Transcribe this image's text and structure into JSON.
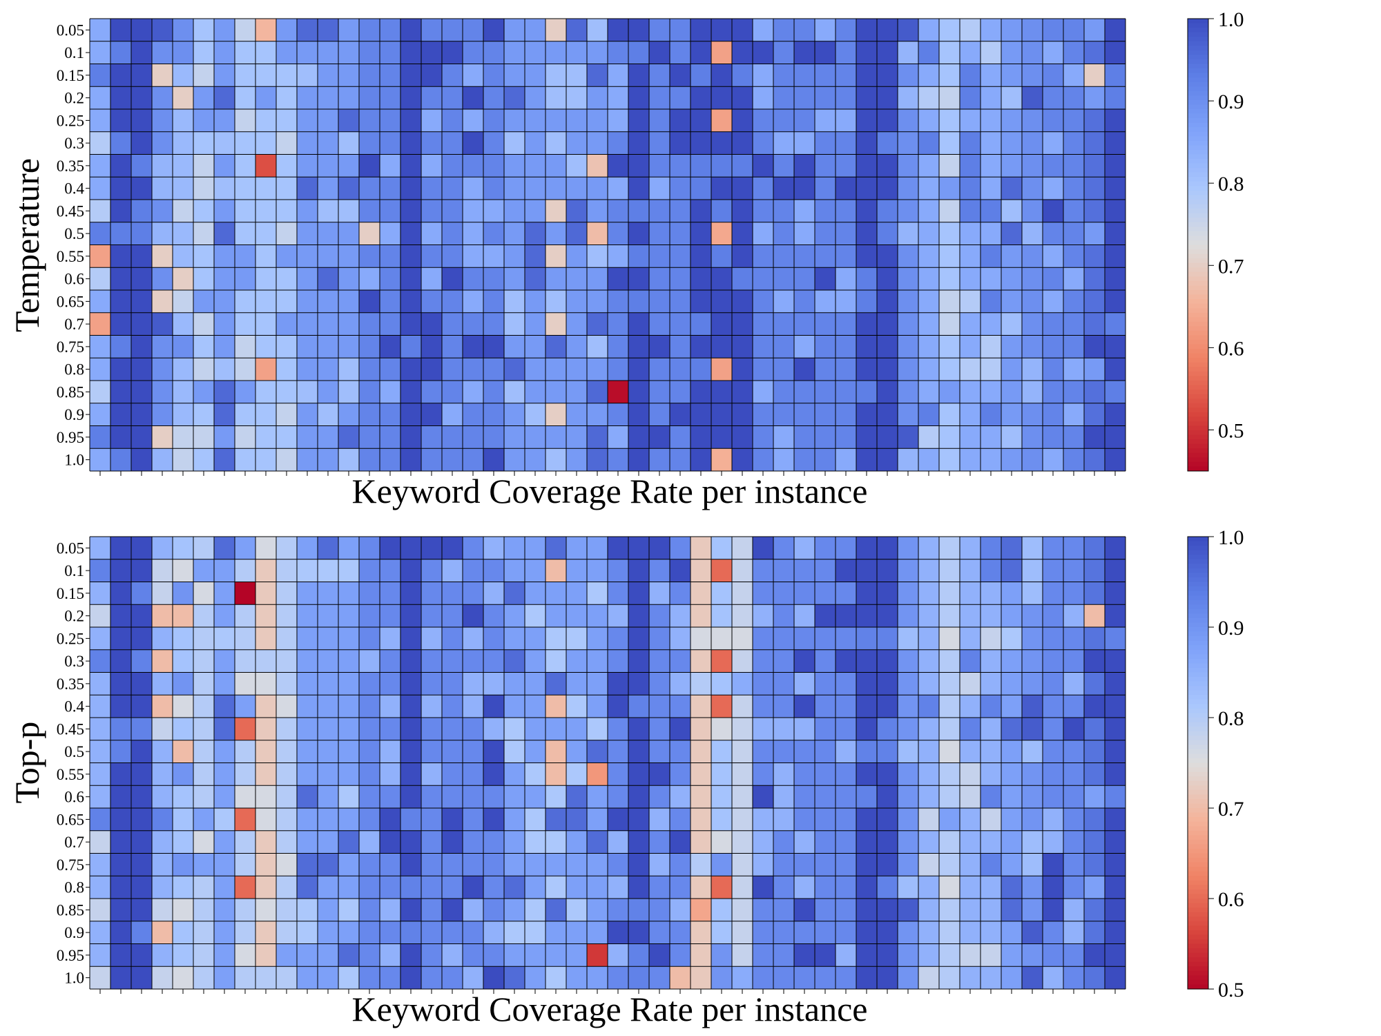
{
  "chart_data": [
    {
      "type": "heatmap",
      "title": "",
      "xlabel": "Keyword Coverage Rate per instance",
      "ylabel": "Temperature",
      "y_categories": [
        "0.05",
        "0.1",
        "0.15",
        "0.2",
        "0.25",
        "0.3",
        "0.35",
        "0.4",
        "0.45",
        "0.5",
        "0.55",
        "0.6",
        "0.65",
        "0.7",
        "0.75",
        "0.8",
        "0.85",
        "0.9",
        "0.95",
        "1.0"
      ],
      "n_columns": 50,
      "x_tick_labels": "none",
      "colormap": "coolwarm",
      "colorbar": {
        "range": [
          0.45,
          1.0
        ],
        "ticks": [
          "0.5",
          "0.6",
          "0.7",
          "0.8",
          "0.9",
          "1.0"
        ],
        "tick_values": [
          0.5,
          0.6,
          0.7,
          0.8,
          0.9,
          1.0
        ]
      },
      "column_profile": [
        0.85,
        1,
        1,
        0.9,
        0.82,
        0.8,
        0.88,
        0.8,
        0.8,
        0.8,
        0.88,
        0.88,
        0.88,
        0.92,
        0.92,
        1,
        0.92,
        0.92,
        0.92,
        0.92,
        0.88,
        0.88,
        0.88,
        0.88,
        0.88,
        0.92,
        1,
        0.92,
        0.92,
        1,
        1,
        1,
        0.92,
        0.92,
        0.92,
        0.92,
        0.92,
        1,
        1,
        0.9,
        0.85,
        0.8,
        0.85,
        0.85,
        0.88,
        0.9,
        0.92,
        0.92,
        0.95,
        1
      ],
      "notable_cells": [
        {
          "row": "0.35",
          "col": 8,
          "value": 0.53
        },
        {
          "row": "0.85",
          "col": 25,
          "value": 0.46
        },
        {
          "row": "0.55",
          "col": 0,
          "value": 0.63
        },
        {
          "row": "0.7",
          "col": 0,
          "value": 0.63
        },
        {
          "row": "0.05",
          "col": 8,
          "value": 0.66
        },
        {
          "row": "0.1",
          "col": 30,
          "value": 0.63
        },
        {
          "row": "0.25",
          "col": 30,
          "value": 0.63
        },
        {
          "row": "0.5",
          "col": 30,
          "value": 0.64
        },
        {
          "row": "0.8",
          "col": 30,
          "value": 0.63
        },
        {
          "row": "1.0",
          "col": 30,
          "value": 0.65
        },
        {
          "row": "0.8",
          "col": 8,
          "value": 0.63
        },
        {
          "row": "0.35",
          "col": 24,
          "value": 0.68
        },
        {
          "row": "0.5",
          "col": 24,
          "value": 0.67
        },
        {
          "row": "0.05",
          "col": 22,
          "value": 0.7
        },
        {
          "row": "0.45",
          "col": 22,
          "value": 0.7
        },
        {
          "row": "0.55",
          "col": 22,
          "value": 0.7
        },
        {
          "row": "0.7",
          "col": 22,
          "value": 0.7
        },
        {
          "row": "0.9",
          "col": 22,
          "value": 0.7
        },
        {
          "row": "0.15",
          "col": 3,
          "value": 0.7
        },
        {
          "row": "0.55",
          "col": 3,
          "value": 0.7
        },
        {
          "row": "0.65",
          "col": 3,
          "value": 0.7
        },
        {
          "row": "0.95",
          "col": 3,
          "value": 0.7
        },
        {
          "row": "0.2",
          "col": 4,
          "value": 0.7
        },
        {
          "row": "0.6",
          "col": 4,
          "value": 0.7
        },
        {
          "row": "0.5",
          "col": 13,
          "value": 0.7
        },
        {
          "row": "0.15",
          "col": 48,
          "value": 0.7
        }
      ]
    },
    {
      "type": "heatmap",
      "title": "",
      "xlabel": "Keyword Coverage Rate per instance",
      "ylabel": "Top-p",
      "y_categories": [
        "0.05",
        "0.1",
        "0.15",
        "0.2",
        "0.25",
        "0.3",
        "0.35",
        "0.4",
        "0.45",
        "0.5",
        "0.55",
        "0.6",
        "0.65",
        "0.7",
        "0.75",
        "0.8",
        "0.85",
        "0.9",
        "0.95",
        "1.0"
      ],
      "n_columns": 50,
      "x_tick_labels": "none",
      "colormap": "coolwarm",
      "colorbar": {
        "range": [
          0.5,
          1.0
        ],
        "ticks": [
          "0.5",
          "0.6",
          "0.7",
          "0.8",
          "0.9",
          "1.0"
        ],
        "tick_values": [
          0.5,
          0.6,
          0.7,
          0.8,
          0.9,
          1.0
        ]
      },
      "column_profile": [
        0.85,
        1,
        1,
        0.85,
        0.82,
        0.8,
        0.88,
        0.8,
        0.72,
        0.8,
        0.88,
        0.88,
        0.88,
        0.92,
        0.92,
        1,
        0.92,
        0.92,
        0.92,
        0.92,
        0.88,
        0.88,
        0.88,
        0.88,
        0.88,
        0.92,
        1,
        0.92,
        0.92,
        0.72,
        0.82,
        0.78,
        0.92,
        0.92,
        0.92,
        0.92,
        0.92,
        1,
        1,
        0.9,
        0.85,
        0.8,
        0.85,
        0.85,
        0.88,
        0.9,
        0.92,
        0.92,
        0.95,
        1
      ],
      "notable_cells": [
        {
          "row": "0.15",
          "col": 7,
          "value": 0.5
        },
        {
          "row": "0.95",
          "col": 24,
          "value": 0.55
        },
        {
          "row": "0.45",
          "col": 7,
          "value": 0.6
        },
        {
          "row": "0.65",
          "col": 7,
          "value": 0.6
        },
        {
          "row": "0.8",
          "col": 7,
          "value": 0.6
        },
        {
          "row": "0.1",
          "col": 30,
          "value": 0.6
        },
        {
          "row": "0.3",
          "col": 30,
          "value": 0.6
        },
        {
          "row": "0.4",
          "col": 30,
          "value": 0.6
        },
        {
          "row": "0.8",
          "col": 30,
          "value": 0.6
        },
        {
          "row": "0.55",
          "col": 24,
          "value": 0.65
        },
        {
          "row": "0.85",
          "col": 29,
          "value": 0.67
        },
        {
          "row": "0.1",
          "col": 22,
          "value": 0.7
        },
        {
          "row": "0.4",
          "col": 22,
          "value": 0.7
        },
        {
          "row": "0.5",
          "col": 22,
          "value": 0.7
        },
        {
          "row": "0.55",
          "col": 22,
          "value": 0.7
        },
        {
          "row": "0.2",
          "col": 3,
          "value": 0.7
        },
        {
          "row": "0.2",
          "col": 4,
          "value": 0.7
        },
        {
          "row": "0.3",
          "col": 3,
          "value": 0.7
        },
        {
          "row": "0.4",
          "col": 3,
          "value": 0.7
        },
        {
          "row": "0.9",
          "col": 3,
          "value": 0.7
        },
        {
          "row": "0.5",
          "col": 4,
          "value": 0.7
        },
        {
          "row": "0.2",
          "col": 48,
          "value": 0.7
        },
        {
          "row": "1.0",
          "col": 28,
          "value": 0.7
        }
      ]
    }
  ]
}
